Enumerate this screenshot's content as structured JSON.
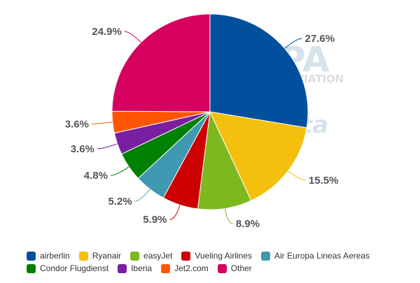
{
  "watermark": {
    "big": "PA",
    "sub": "AVIATION",
    "small": "ta"
  },
  "chart_data": {
    "type": "pie",
    "title": "",
    "start_angle_deg": 0,
    "direction": "clockwise",
    "slices": [
      {
        "label": "airberlin",
        "value": 27.6,
        "display": "27.6%",
        "color": "#00509e"
      },
      {
        "label": "Ryanair",
        "value": 15.5,
        "display": "15.5%",
        "color": "#f5bf0d"
      },
      {
        "label": "easyJet",
        "value": 8.9,
        "display": "8.9%",
        "color": "#7db81f"
      },
      {
        "label": "Vueling Airlines",
        "value": 5.9,
        "display": "5.9%",
        "color": "#cc0000"
      },
      {
        "label": "Air Europa Lineas Aereas",
        "value": 5.2,
        "display": "5.2%",
        "color": "#3f99b0"
      },
      {
        "label": "Condor Flugdienst",
        "value": 4.8,
        "display": "4.8%",
        "color": "#008000"
      },
      {
        "label": "Iberia",
        "value": 3.6,
        "display": "3.6%",
        "color": "#7b1fa2"
      },
      {
        "label": "Jet2.com",
        "value": 3.6,
        "display": "3.6%",
        "color": "#ff5500"
      },
      {
        "label": "Other",
        "value": 24.9,
        "display": "24.9%",
        "color": "#d6005e"
      }
    ],
    "legend_position": "bottom"
  }
}
